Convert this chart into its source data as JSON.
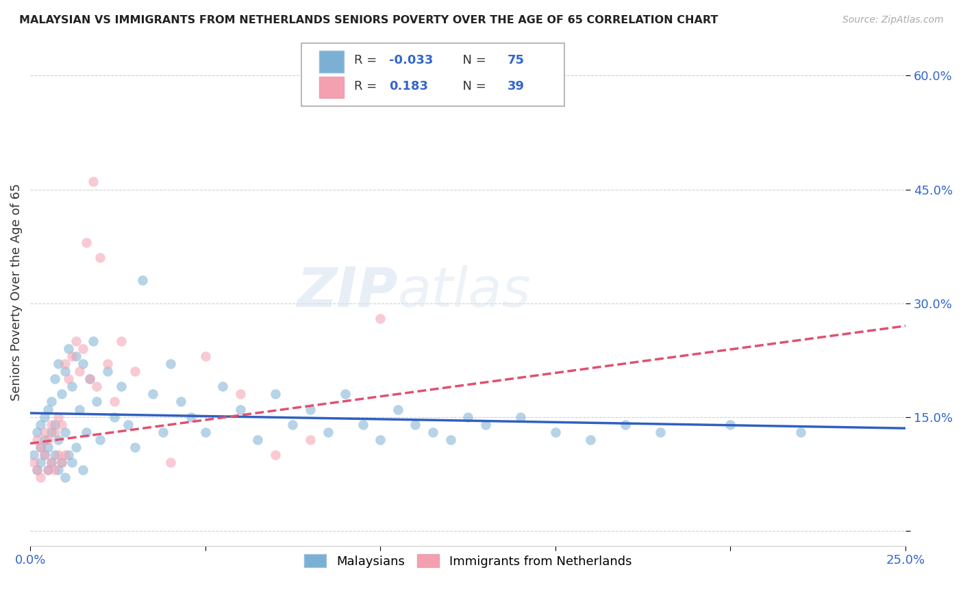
{
  "title": "MALAYSIAN VS IMMIGRANTS FROM NETHERLANDS SENIORS POVERTY OVER THE AGE OF 65 CORRELATION CHART",
  "source": "Source: ZipAtlas.com",
  "ylabel": "Seniors Poverty Over the Age of 65",
  "xlim": [
    0.0,
    0.25
  ],
  "ylim": [
    -0.02,
    0.65
  ],
  "xticks": [
    0.0,
    0.05,
    0.1,
    0.15,
    0.2,
    0.25
  ],
  "xticklabels": [
    "0.0%",
    "",
    "",
    "",
    "",
    "25.0%"
  ],
  "yticks": [
    0.0,
    0.15,
    0.3,
    0.45,
    0.6
  ],
  "yticklabels": [
    "",
    "15.0%",
    "30.0%",
    "45.0%",
    "60.0%"
  ],
  "legend1_label": "Malaysians",
  "legend2_label": "Immigrants from Netherlands",
  "r1": "-0.033",
  "n1": "75",
  "r2": "0.183",
  "n2": "39",
  "color1": "#7bafd4",
  "color2": "#f4a0b0",
  "line1_color": "#3060c0",
  "line2_color": "#e05070",
  "watermark_zip": "ZIP",
  "watermark_atlas": "atlas",
  "background_color": "#ffffff",
  "grid_color": "#cccccc",
  "malaysians_x": [
    0.001,
    0.002,
    0.002,
    0.003,
    0.003,
    0.003,
    0.004,
    0.004,
    0.004,
    0.005,
    0.005,
    0.005,
    0.006,
    0.006,
    0.006,
    0.007,
    0.007,
    0.007,
    0.008,
    0.008,
    0.008,
    0.009,
    0.009,
    0.01,
    0.01,
    0.01,
    0.011,
    0.011,
    0.012,
    0.012,
    0.013,
    0.013,
    0.014,
    0.015,
    0.015,
    0.016,
    0.017,
    0.018,
    0.019,
    0.02,
    0.022,
    0.024,
    0.026,
    0.028,
    0.03,
    0.032,
    0.035,
    0.038,
    0.04,
    0.043,
    0.046,
    0.05,
    0.055,
    0.06,
    0.065,
    0.07,
    0.075,
    0.08,
    0.085,
    0.09,
    0.095,
    0.1,
    0.105,
    0.11,
    0.115,
    0.12,
    0.125,
    0.13,
    0.14,
    0.15,
    0.16,
    0.17,
    0.18,
    0.2,
    0.22
  ],
  "malaysians_y": [
    0.1,
    0.08,
    0.13,
    0.09,
    0.11,
    0.14,
    0.1,
    0.12,
    0.15,
    0.08,
    0.11,
    0.16,
    0.09,
    0.13,
    0.17,
    0.1,
    0.14,
    0.2,
    0.08,
    0.12,
    0.22,
    0.09,
    0.18,
    0.07,
    0.13,
    0.21,
    0.1,
    0.24,
    0.09,
    0.19,
    0.11,
    0.23,
    0.16,
    0.08,
    0.22,
    0.13,
    0.2,
    0.25,
    0.17,
    0.12,
    0.21,
    0.15,
    0.19,
    0.14,
    0.11,
    0.33,
    0.18,
    0.13,
    0.22,
    0.17,
    0.15,
    0.13,
    0.19,
    0.16,
    0.12,
    0.18,
    0.14,
    0.16,
    0.13,
    0.18,
    0.14,
    0.12,
    0.16,
    0.14,
    0.13,
    0.12,
    0.15,
    0.14,
    0.15,
    0.13,
    0.12,
    0.14,
    0.13,
    0.14,
    0.13
  ],
  "netherlands_x": [
    0.001,
    0.002,
    0.002,
    0.003,
    0.003,
    0.004,
    0.004,
    0.005,
    0.005,
    0.006,
    0.006,
    0.007,
    0.007,
    0.008,
    0.008,
    0.009,
    0.009,
    0.01,
    0.01,
    0.011,
    0.012,
    0.013,
    0.014,
    0.015,
    0.016,
    0.017,
    0.018,
    0.019,
    0.02,
    0.022,
    0.024,
    0.026,
    0.03,
    0.04,
    0.05,
    0.06,
    0.07,
    0.08,
    0.1
  ],
  "netherlands_y": [
    0.09,
    0.08,
    0.12,
    0.07,
    0.11,
    0.1,
    0.13,
    0.08,
    0.12,
    0.09,
    0.14,
    0.08,
    0.13,
    0.1,
    0.15,
    0.09,
    0.14,
    0.1,
    0.22,
    0.2,
    0.23,
    0.25,
    0.21,
    0.24,
    0.38,
    0.2,
    0.46,
    0.19,
    0.36,
    0.22,
    0.17,
    0.25,
    0.21,
    0.09,
    0.23,
    0.18,
    0.1,
    0.12,
    0.28
  ],
  "line1_x": [
    0.0,
    0.25
  ],
  "line1_y": [
    0.155,
    0.135
  ],
  "line2_x": [
    0.0,
    0.25
  ],
  "line2_y": [
    0.115,
    0.27
  ]
}
